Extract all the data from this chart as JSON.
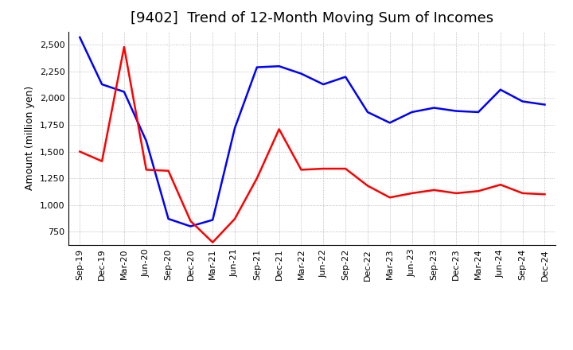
{
  "title": "[9402]  Trend of 12-Month Moving Sum of Incomes",
  "ylabel": "Amount (million yen)",
  "x_labels": [
    "Sep-19",
    "Dec-19",
    "Mar-20",
    "Jun-20",
    "Sep-20",
    "Dec-20",
    "Mar-21",
    "Jun-21",
    "Sep-21",
    "Dec-21",
    "Mar-22",
    "Jun-22",
    "Sep-22",
    "Dec-22",
    "Mar-23",
    "Jun-23",
    "Sep-23",
    "Dec-23",
    "Mar-24",
    "Jun-24",
    "Sep-24",
    "Dec-24"
  ],
  "ordinary_income": [
    2570,
    2130,
    2060,
    1600,
    870,
    800,
    860,
    1720,
    2290,
    2300,
    2230,
    2130,
    2200,
    1870,
    1770,
    1870,
    1910,
    1880,
    1870,
    2080,
    1970,
    1940
  ],
  "net_income": [
    1500,
    1410,
    2480,
    1330,
    1320,
    850,
    650,
    870,
    1250,
    1710,
    1330,
    1340,
    1340,
    1180,
    1070,
    1110,
    1140,
    1110,
    1130,
    1190,
    1110,
    1100
  ],
  "ordinary_color": "#0000FF",
  "net_color": "#FF0000",
  "ylim_min": 625,
  "ylim_max": 2625,
  "yticks": [
    750,
    1000,
    1250,
    1500,
    1750,
    2000,
    2250,
    2500
  ],
  "background_color": "#FFFFFF",
  "grid_color": "#AAAAAA",
  "title_fontsize": 13,
  "axis_label_fontsize": 9,
  "tick_fontsize": 8,
  "legend_fontsize": 9,
  "line_width": 1.8
}
